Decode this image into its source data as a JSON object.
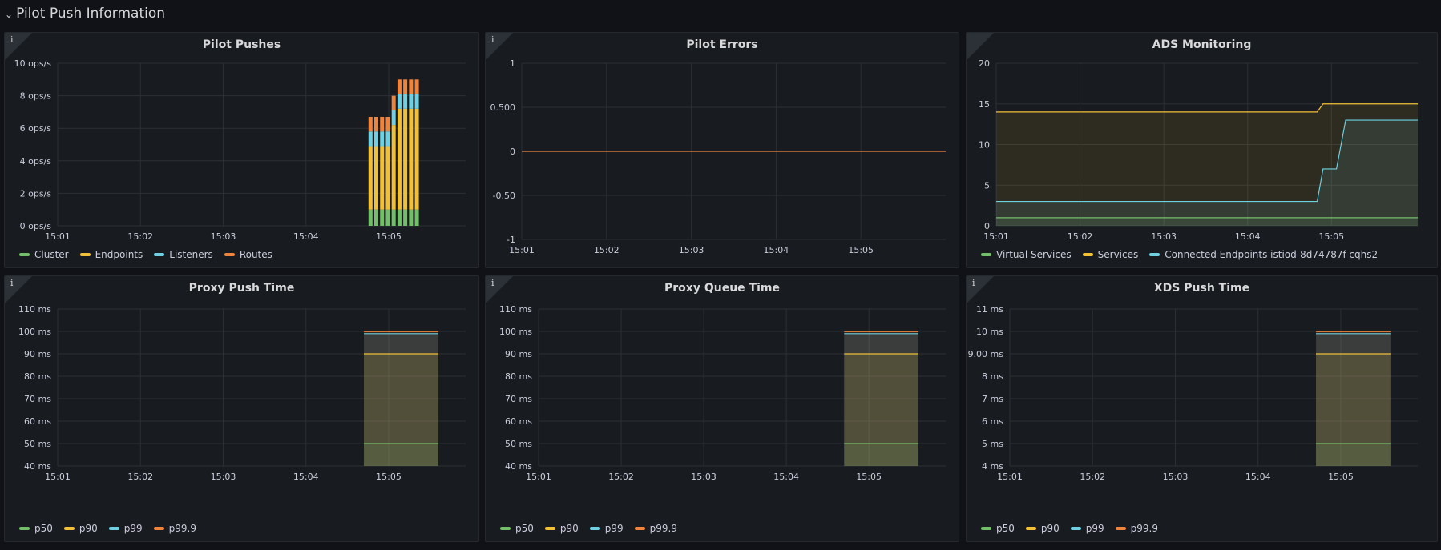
{
  "row": {
    "title": "Pilot Push Information",
    "chevron": "chevron-down-icon"
  },
  "colors": {
    "green": "#73bf69",
    "yellow": "#f2c037",
    "blue": "#6ed0e0",
    "orange": "#ef843c",
    "grid": "#2c2f34",
    "axis_text": "#ccccdc"
  },
  "panels": [
    {
      "title": "Pilot Pushes",
      "legend": [
        {
          "label": "Cluster",
          "color": "#73bf69"
        },
        {
          "label": "Endpoints",
          "color": "#f2c037"
        },
        {
          "label": "Listeners",
          "color": "#6ed0e0"
        },
        {
          "label": "Routes",
          "color": "#ef843c"
        }
      ],
      "chart_data": {
        "type": "bar",
        "stacked": true,
        "x_ticks": [
          "15:01",
          "15:02",
          "15:03",
          "15:04",
          "15:05"
        ],
        "y_ticks": [
          "0 ops/s",
          "2 ops/s",
          "4 ops/s",
          "6 ops/s",
          "8 ops/s",
          "10 ops/s"
        ],
        "ylim": [
          0,
          10
        ],
        "x_range_min": [
          0,
          4.93
        ],
        "bar_times_min": [
          3.78,
          3.85,
          3.92,
          3.99,
          4.06,
          4.13,
          4.2,
          4.27,
          4.34
        ],
        "series": [
          {
            "name": "Cluster",
            "values": [
              1.0,
              1.0,
              1.0,
              1.0,
              1.0,
              1.0,
              1.0,
              1.0,
              1.0
            ]
          },
          {
            "name": "Endpoints",
            "values": [
              3.9,
              3.9,
              3.9,
              3.9,
              5.2,
              6.2,
              6.2,
              6.2,
              6.2
            ]
          },
          {
            "name": "Listeners",
            "values": [
              0.9,
              0.9,
              0.9,
              0.9,
              0.9,
              0.9,
              0.9,
              0.9,
              0.9
            ]
          },
          {
            "name": "Routes",
            "values": [
              0.9,
              0.9,
              0.9,
              0.9,
              0.9,
              0.9,
              0.9,
              0.9,
              0.9
            ]
          }
        ],
        "grid": true
      }
    },
    {
      "title": "Pilot Errors",
      "legend": [],
      "chart_data": {
        "type": "line",
        "x_ticks": [
          "15:01",
          "15:02",
          "15:03",
          "15:04",
          "15:05"
        ],
        "y_ticks": [
          "-1",
          "-0.50",
          "0",
          "0.500",
          "1"
        ],
        "ylim": [
          -1,
          1
        ],
        "x_range_min": [
          0,
          5.0
        ],
        "series": [
          {
            "color": "#ef843c",
            "x": [
              0,
              5.0
            ],
            "y": [
              0,
              0
            ]
          }
        ],
        "grid": true
      }
    },
    {
      "title": "ADS Monitoring",
      "legend": [
        {
          "label": "Virtual Services",
          "color": "#73bf69"
        },
        {
          "label": "Services",
          "color": "#f2c037"
        },
        {
          "label": "Connected Endpoints istiod-8d74787f-cqhs2",
          "color": "#6ed0e0"
        }
      ],
      "chart_data": {
        "type": "area",
        "x_ticks": [
          "15:01",
          "15:02",
          "15:03",
          "15:04",
          "15:05"
        ],
        "y_ticks": [
          "0",
          "5",
          "10",
          "15",
          "20"
        ],
        "ylim": [
          0,
          20
        ],
        "x_range_min": [
          0,
          5.03
        ],
        "series": [
          {
            "name": "Services",
            "color": "#f2c037",
            "x": [
              0,
              3.83,
              3.9,
              5.03
            ],
            "y": [
              14,
              14,
              15,
              15
            ]
          },
          {
            "name": "Connected Endpoints istiod-8d74787f-cqhs2",
            "color": "#6ed0e0",
            "x": [
              0,
              3.83,
              3.9,
              4.06,
              4.17,
              5.03
            ],
            "y": [
              3,
              3,
              7,
              7,
              13,
              13
            ]
          },
          {
            "name": "Virtual Services",
            "color": "#73bf69",
            "x": [
              0,
              5.03
            ],
            "y": [
              1,
              1
            ]
          }
        ],
        "grid": true
      }
    },
    {
      "title": "Proxy Push Time",
      "legend": [
        {
          "label": "p50",
          "color": "#73bf69"
        },
        {
          "label": "p90",
          "color": "#f2c037"
        },
        {
          "label": "p99",
          "color": "#6ed0e0"
        },
        {
          "label": "p99.9",
          "color": "#ef843c"
        }
      ],
      "chart_data": {
        "type": "area",
        "x_ticks": [
          "15:01",
          "15:02",
          "15:03",
          "15:04",
          "15:05"
        ],
        "y_ticks": [
          "40 ms",
          "50 ms",
          "60 ms",
          "70 ms",
          "80 ms",
          "90 ms",
          "100 ms",
          "110 ms"
        ],
        "ylim": [
          40,
          110
        ],
        "x_range_min": [
          0,
          4.93
        ],
        "window_min": [
          3.7,
          4.6
        ],
        "series": [
          {
            "name": "p99.9",
            "value": 99.9,
            "color": "#ef843c"
          },
          {
            "name": "p99",
            "value": 99,
            "color": "#6ed0e0"
          },
          {
            "name": "p90",
            "value": 90,
            "color": "#f2c037"
          },
          {
            "name": "p50",
            "value": 50,
            "color": "#73bf69"
          }
        ],
        "grid": true
      }
    },
    {
      "title": "Proxy Queue Time",
      "legend": [
        {
          "label": "p50",
          "color": "#73bf69"
        },
        {
          "label": "p90",
          "color": "#f2c037"
        },
        {
          "label": "p99",
          "color": "#6ed0e0"
        },
        {
          "label": "p99.9",
          "color": "#ef843c"
        }
      ],
      "chart_data": {
        "type": "area",
        "x_ticks": [
          "15:01",
          "15:02",
          "15:03",
          "15:04",
          "15:05"
        ],
        "y_ticks": [
          "40 ms",
          "50 ms",
          "60 ms",
          "70 ms",
          "80 ms",
          "90 ms",
          "100 ms",
          "110 ms"
        ],
        "ylim": [
          40,
          110
        ],
        "x_range_min": [
          0,
          4.93
        ],
        "window_min": [
          3.7,
          4.6
        ],
        "series": [
          {
            "name": "p99.9",
            "value": 99.9,
            "color": "#ef843c"
          },
          {
            "name": "p99",
            "value": 99,
            "color": "#6ed0e0"
          },
          {
            "name": "p90",
            "value": 90,
            "color": "#f2c037"
          },
          {
            "name": "p50",
            "value": 50,
            "color": "#73bf69"
          }
        ],
        "grid": true
      }
    },
    {
      "title": "XDS Push Time",
      "legend": [
        {
          "label": "p50",
          "color": "#73bf69"
        },
        {
          "label": "p90",
          "color": "#f2c037"
        },
        {
          "label": "p99",
          "color": "#6ed0e0"
        },
        {
          "label": "p99.9",
          "color": "#ef843c"
        }
      ],
      "chart_data": {
        "type": "area",
        "x_ticks": [
          "15:01",
          "15:02",
          "15:03",
          "15:04",
          "15:05"
        ],
        "y_ticks": [
          "4 ms",
          "5 ms",
          "6 ms",
          "7 ms",
          "8 ms",
          "9.00 ms",
          "10 ms",
          "11 ms"
        ],
        "ylim": [
          4,
          11
        ],
        "x_range_min": [
          0,
          4.93
        ],
        "window_min": [
          3.7,
          4.6
        ],
        "series": [
          {
            "name": "p99.9",
            "value": 9.99,
            "color": "#ef843c"
          },
          {
            "name": "p99",
            "value": 9.9,
            "color": "#6ed0e0"
          },
          {
            "name": "p90",
            "value": 9.0,
            "color": "#f2c037"
          },
          {
            "name": "p50",
            "value": 5.0,
            "color": "#73bf69"
          }
        ],
        "grid": true
      }
    }
  ]
}
